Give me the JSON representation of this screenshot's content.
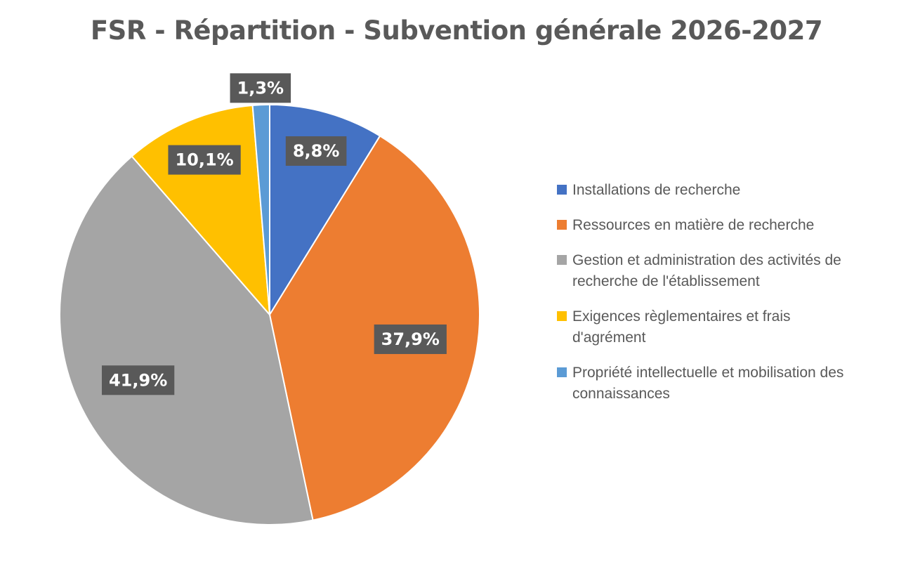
{
  "chart_data": {
    "type": "pie",
    "title": "FSR - Répartition - Subvention générale 2026-2027",
    "slices": [
      {
        "name": "Installations de recherche",
        "value": 8.8,
        "label": "8,8%",
        "color": "#4472C4"
      },
      {
        "name": "Ressources en matière de recherche",
        "value": 37.9,
        "label": "37,9%",
        "color": "#ED7D31"
      },
      {
        "name": "Gestion et administration des activités de recherche de l'établissement",
        "value": 41.9,
        "label": "41,9%",
        "color": "#A5A5A5"
      },
      {
        "name": "Exigences règlementaires et frais d'agrément",
        "value": 10.1,
        "label": "10,1%",
        "color": "#FFC000"
      },
      {
        "name": "Propriété intellectuelle et mobilisation des connaissances",
        "value": 1.3,
        "label": "1,3%",
        "color": "#5B9BD5"
      }
    ],
    "legend_position": "right",
    "label_box_color": "#595959"
  }
}
